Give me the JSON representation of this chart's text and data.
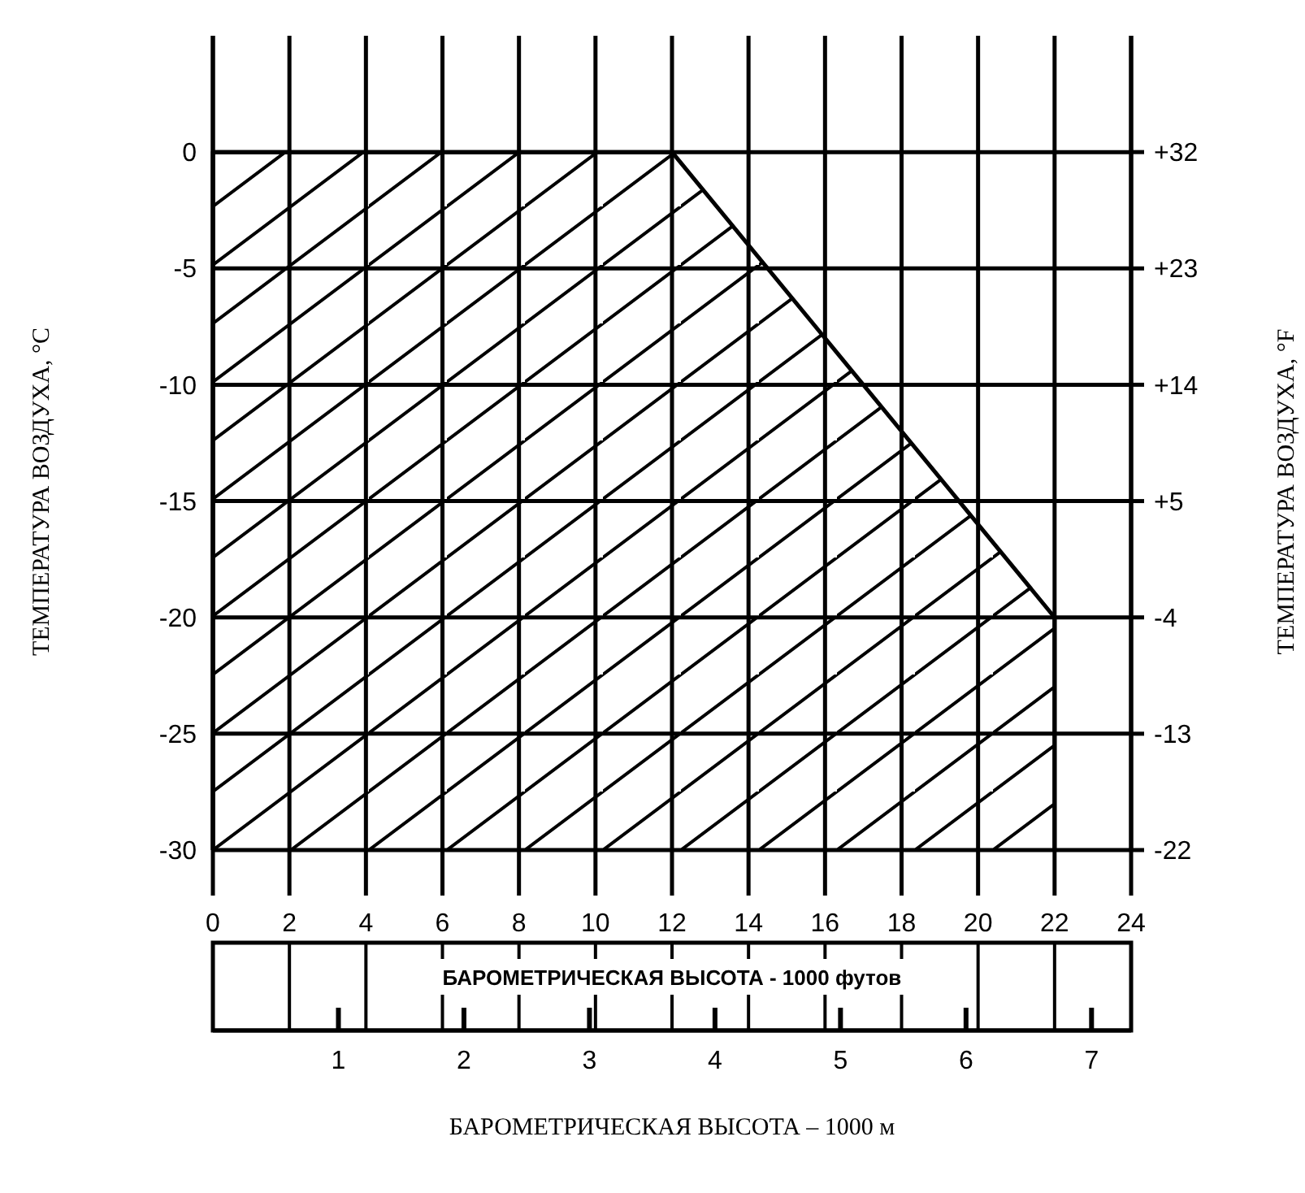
{
  "chart_data": {
    "type": "area",
    "xlabel": "БАРОМЕТРИЧЕСКАЯ ВЫСОТА - 1000 футов",
    "ylabel": "ТЕМПЕРАТУРА ВОЗДУХА, °C",
    "y2label": "ТЕМПЕРАТУРА ВОЗДУХА, °F",
    "x2label": "БАРОМЕТРИЧЕСКАЯ ВЫСОТА – 1000 м",
    "series": [
      {
        "color": "#000000",
        "x": [
          0,
          0,
          12,
          22,
          22
        ],
        "values": [
          -30,
          0,
          0,
          -20,
          -30
        ]
      }
    ],
    "xlim": [
      0,
      24
    ],
    "xticks": [
      0,
      2,
      4,
      6,
      8,
      10,
      12,
      14,
      16,
      18,
      20,
      22,
      24
    ],
    "ylim": [
      -30,
      5
    ],
    "yticks": [
      0,
      -5,
      -10,
      -15,
      -20,
      -25,
      -30
    ],
    "y2lim": [
      -22,
      41
    ],
    "y2ticks": [
      {
        "value": 32,
        "label": "+32"
      },
      {
        "value": 23,
        "label": "+23"
      },
      {
        "value": 14,
        "label": "+14"
      },
      {
        "value": 5,
        "label": "+5"
      },
      -4,
      -13,
      -22
    ],
    "x2lim": [
      0,
      7.3152
    ],
    "x2ticks": [
      1,
      2,
      3,
      4,
      5,
      6,
      7
    ],
    "grid": true
  }
}
